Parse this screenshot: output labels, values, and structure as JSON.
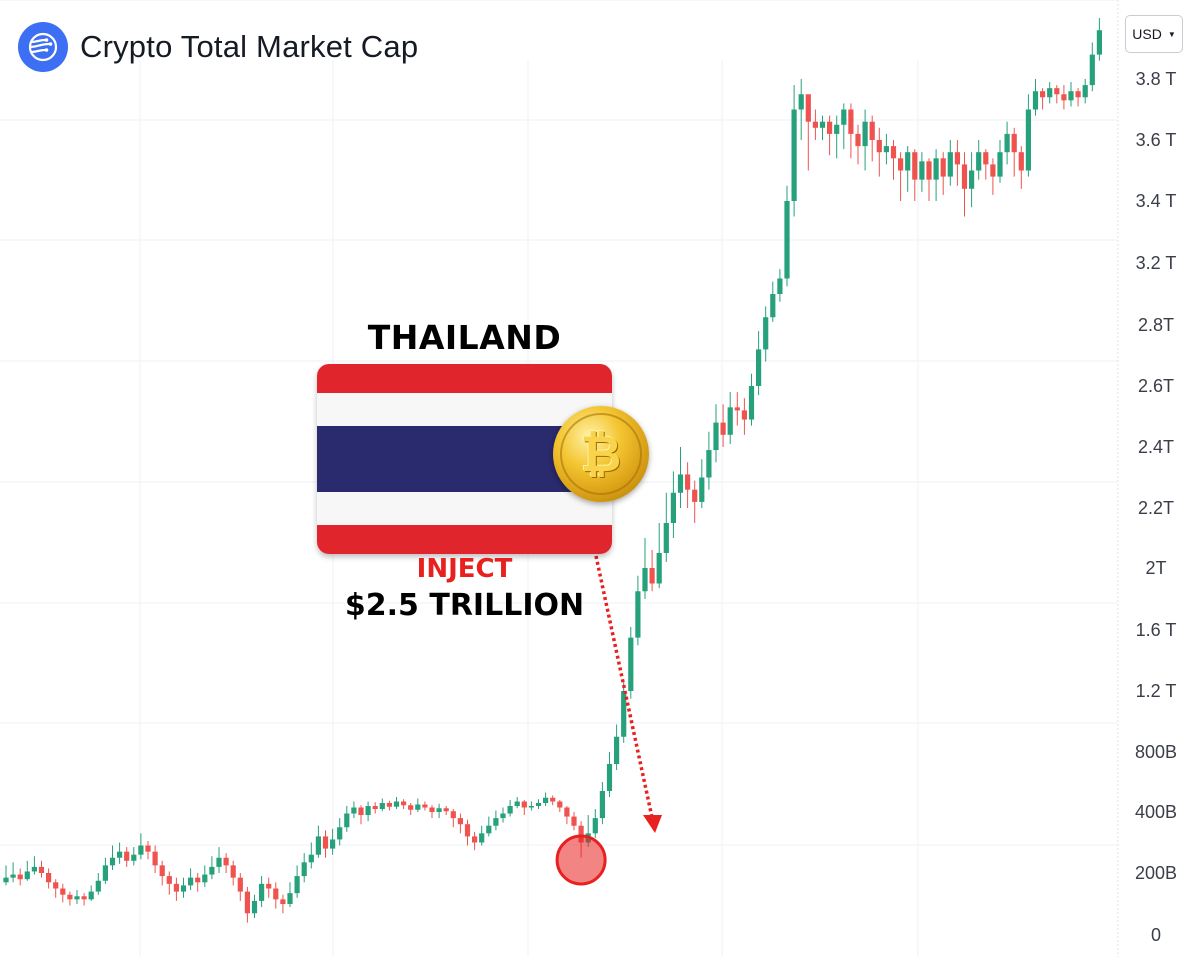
{
  "header": {
    "title": "Crypto Total Market Cap",
    "logo_icon": "waves-globe-icon"
  },
  "currency": {
    "label": "USD",
    "chevron_icon": "chevron-down-icon"
  },
  "colors": {
    "up": "#26a17b",
    "down": "#ef5350",
    "accent": "#3d6ff5",
    "flag_red": "#e0252d",
    "flag_blue": "#2a2a6e"
  },
  "annotation": {
    "country": "THAILAND",
    "action": "INJECT",
    "amount": "$2.5 TRILLION",
    "coin_icon": "bitcoin-coin-icon"
  },
  "chart_data": {
    "type": "candlestick",
    "title": "Crypto Total Market Cap",
    "currency": "USD",
    "y_ticks": [
      {
        "label": "0",
        "value": 0
      },
      {
        "label": "200B",
        "value": 200
      },
      {
        "label": "400B",
        "value": 400
      },
      {
        "label": "800B",
        "value": 800
      },
      {
        "label": "1.2 T",
        "value": 1200
      },
      {
        "label": "1.6 T",
        "value": 1600
      },
      {
        "label": "2T",
        "value": 2000
      },
      {
        "label": "2.2T",
        "value": 2200
      },
      {
        "label": "2.4T",
        "value": 2400
      },
      {
        "label": "2.6T",
        "value": 2600
      },
      {
        "label": "2.8T",
        "value": 2800
      },
      {
        "label": "3.2 T",
        "value": 3200
      },
      {
        "label": "3.4 T",
        "value": 3400
      },
      {
        "label": "3.6 T",
        "value": 3600
      },
      {
        "label": "3.8 T",
        "value": 3800
      }
    ],
    "unit": "billion USD",
    "grid": true,
    "highlight_index": 81,
    "candles": [
      [
        170,
        185,
        225,
        160
      ],
      [
        185,
        195,
        235,
        170
      ],
      [
        195,
        180,
        215,
        160
      ],
      [
        180,
        205,
        240,
        175
      ],
      [
        205,
        220,
        255,
        195
      ],
      [
        220,
        200,
        240,
        185
      ],
      [
        200,
        170,
        215,
        150
      ],
      [
        170,
        150,
        180,
        120
      ],
      [
        150,
        130,
        165,
        105
      ],
      [
        130,
        115,
        140,
        95
      ],
      [
        115,
        125,
        145,
        100
      ],
      [
        125,
        115,
        135,
        95
      ],
      [
        115,
        140,
        160,
        110
      ],
      [
        140,
        175,
        200,
        130
      ],
      [
        175,
        225,
        250,
        165
      ],
      [
        225,
        250,
        290,
        210
      ],
      [
        250,
        270,
        300,
        230
      ],
      [
        270,
        240,
        285,
        220
      ],
      [
        240,
        260,
        285,
        225
      ],
      [
        260,
        290,
        330,
        245
      ],
      [
        290,
        270,
        305,
        245
      ],
      [
        270,
        225,
        290,
        200
      ],
      [
        225,
        190,
        240,
        160
      ],
      [
        190,
        165,
        205,
        130
      ],
      [
        165,
        140,
        185,
        110
      ],
      [
        140,
        160,
        185,
        120
      ],
      [
        160,
        185,
        215,
        145
      ],
      [
        185,
        170,
        200,
        140
      ],
      [
        170,
        195,
        225,
        155
      ],
      [
        195,
        220,
        255,
        180
      ],
      [
        220,
        250,
        285,
        200
      ],
      [
        250,
        225,
        265,
        200
      ],
      [
        225,
        185,
        240,
        160
      ],
      [
        185,
        140,
        200,
        110
      ],
      [
        140,
        70,
        155,
        40
      ],
      [
        70,
        110,
        130,
        55
      ],
      [
        110,
        165,
        190,
        90
      ],
      [
        165,
        150,
        185,
        120
      ],
      [
        150,
        115,
        170,
        85
      ],
      [
        115,
        100,
        130,
        70
      ],
      [
        100,
        135,
        170,
        90
      ],
      [
        135,
        190,
        225,
        120
      ],
      [
        190,
        235,
        265,
        170
      ],
      [
        235,
        260,
        300,
        215
      ],
      [
        260,
        320,
        355,
        250
      ],
      [
        320,
        280,
        340,
        250
      ],
      [
        280,
        310,
        345,
        260
      ],
      [
        310,
        350,
        380,
        290
      ],
      [
        350,
        395,
        440,
        335
      ],
      [
        395,
        430,
        470,
        380
      ],
      [
        430,
        390,
        445,
        360
      ],
      [
        390,
        440,
        470,
        370
      ],
      [
        440,
        420,
        465,
        395
      ],
      [
        420,
        460,
        490,
        405
      ],
      [
        460,
        435,
        475,
        410
      ],
      [
        435,
        470,
        500,
        420
      ],
      [
        470,
        445,
        485,
        420
      ],
      [
        445,
        415,
        460,
        390
      ],
      [
        415,
        450,
        490,
        400
      ],
      [
        450,
        430,
        470,
        410
      ],
      [
        430,
        400,
        445,
        380
      ],
      [
        400,
        425,
        455,
        380
      ],
      [
        425,
        405,
        440,
        390
      ],
      [
        405,
        380,
        420,
        350
      ],
      [
        380,
        360,
        395,
        330
      ],
      [
        360,
        320,
        375,
        290
      ],
      [
        320,
        300,
        335,
        275
      ],
      [
        300,
        330,
        355,
        290
      ],
      [
        330,
        355,
        385,
        320
      ],
      [
        355,
        380,
        410,
        340
      ],
      [
        380,
        395,
        430,
        365
      ],
      [
        395,
        440,
        480,
        385
      ],
      [
        440,
        470,
        500,
        425
      ],
      [
        470,
        430,
        480,
        390
      ],
      [
        430,
        440,
        470,
        410
      ],
      [
        440,
        460,
        485,
        420
      ],
      [
        460,
        495,
        530,
        440
      ],
      [
        495,
        470,
        510,
        445
      ],
      [
        470,
        430,
        480,
        400
      ],
      [
        430,
        385,
        440,
        360
      ],
      [
        385,
        355,
        400,
        340
      ],
      [
        355,
        300,
        370,
        250
      ],
      [
        300,
        330,
        390,
        285
      ],
      [
        330,
        380,
        420,
        315
      ],
      [
        380,
        540,
        600,
        360
      ],
      [
        540,
        720,
        800,
        500
      ],
      [
        720,
        900,
        980,
        680
      ],
      [
        900,
        1200,
        1260,
        860
      ],
      [
        1200,
        1550,
        1620,
        1150
      ],
      [
        1550,
        1850,
        1950,
        1500
      ],
      [
        1850,
        2000,
        2100,
        1800
      ],
      [
        2000,
        1900,
        2060,
        1850
      ],
      [
        1900,
        2050,
        2150,
        1870
      ],
      [
        2050,
        2150,
        2250,
        2020
      ],
      [
        2150,
        2250,
        2320,
        2100
      ],
      [
        2250,
        2310,
        2400,
        2200
      ],
      [
        2310,
        2260,
        2350,
        2200
      ],
      [
        2260,
        2220,
        2290,
        2150
      ],
      [
        2220,
        2300,
        2360,
        2200
      ],
      [
        2300,
        2390,
        2450,
        2260
      ],
      [
        2390,
        2480,
        2540,
        2350
      ],
      [
        2480,
        2440,
        2540,
        2400
      ],
      [
        2440,
        2530,
        2580,
        2410
      ],
      [
        2530,
        2520,
        2580,
        2470
      ],
      [
        2520,
        2490,
        2560,
        2440
      ],
      [
        2490,
        2600,
        2640,
        2470
      ],
      [
        2600,
        2720,
        2780,
        2570
      ],
      [
        2720,
        2850,
        2920,
        2680
      ],
      [
        2850,
        3000,
        3080,
        2820
      ],
      [
        3000,
        3100,
        3160,
        2950
      ],
      [
        3100,
        3400,
        3450,
        3050
      ],
      [
        3400,
        3700,
        3780,
        3350
      ],
      [
        3700,
        3750,
        3800,
        3600
      ],
      [
        3750,
        3660,
        3720,
        3500
      ],
      [
        3660,
        3640,
        3700,
        3600
      ],
      [
        3640,
        3660,
        3680,
        3600
      ],
      [
        3660,
        3620,
        3680,
        3550
      ],
      [
        3620,
        3650,
        3680,
        3540
      ],
      [
        3650,
        3700,
        3720,
        3570
      ],
      [
        3700,
        3620,
        3720,
        3540
      ],
      [
        3620,
        3580,
        3650,
        3520
      ],
      [
        3580,
        3660,
        3700,
        3500
      ],
      [
        3660,
        3600,
        3680,
        3530
      ],
      [
        3600,
        3560,
        3640,
        3480
      ],
      [
        3560,
        3580,
        3620,
        3520
      ],
      [
        3580,
        3540,
        3600,
        3470
      ],
      [
        3540,
        3500,
        3560,
        3400
      ],
      [
        3500,
        3560,
        3580,
        3430
      ],
      [
        3560,
        3470,
        3570,
        3400
      ],
      [
        3470,
        3530,
        3560,
        3430
      ],
      [
        3530,
        3470,
        3540,
        3400
      ],
      [
        3470,
        3540,
        3570,
        3400
      ],
      [
        3540,
        3480,
        3560,
        3420
      ],
      [
        3480,
        3560,
        3600,
        3450
      ],
      [
        3560,
        3520,
        3600,
        3450
      ],
      [
        3520,
        3440,
        3560,
        3350
      ],
      [
        3440,
        3500,
        3560,
        3380
      ],
      [
        3500,
        3560,
        3600,
        3470
      ],
      [
        3560,
        3520,
        3570,
        3470
      ],
      [
        3520,
        3480,
        3540,
        3420
      ],
      [
        3480,
        3560,
        3600,
        3460
      ],
      [
        3560,
        3620,
        3660,
        3520
      ],
      [
        3620,
        3560,
        3640,
        3480
      ],
      [
        3560,
        3500,
        3580,
        3440
      ],
      [
        3500,
        3700,
        3750,
        3480
      ],
      [
        3700,
        3760,
        3800,
        3680
      ],
      [
        3760,
        3740,
        3770,
        3700
      ],
      [
        3740,
        3770,
        3790,
        3720
      ],
      [
        3770,
        3750,
        3780,
        3720
      ],
      [
        3750,
        3730,
        3780,
        3700
      ],
      [
        3730,
        3760,
        3790,
        3710
      ],
      [
        3760,
        3740,
        3770,
        3710
      ],
      [
        3740,
        3780,
        3800,
        3720
      ],
      [
        3780,
        3880,
        3920,
        3760
      ],
      [
        3880,
        3960,
        4000,
        3860
      ]
    ]
  }
}
